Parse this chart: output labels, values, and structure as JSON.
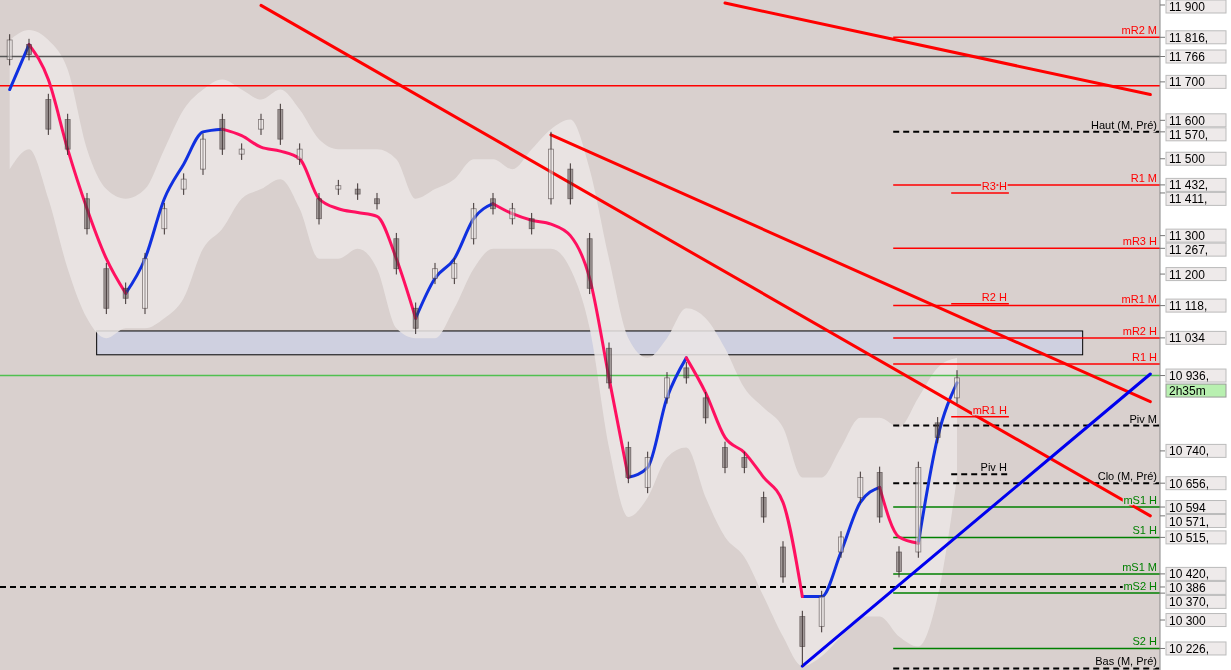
{
  "chart_data": {
    "type": "candlestick",
    "categories": [
      null,
      null,
      null,
      null,
      null,
      null,
      null,
      null,
      null,
      null,
      null,
      null,
      null,
      null,
      null,
      null,
      null,
      null,
      null,
      null,
      null,
      null,
      null,
      null,
      null,
      null,
      null,
      null,
      null,
      null,
      null,
      null,
      null,
      null,
      null,
      null,
      null,
      null,
      null,
      null,
      null,
      null,
      null,
      null,
      null,
      null,
      null,
      null,
      null,
      null,
      null,
      null,
      null,
      null,
      null,
      null,
      null,
      null,
      null,
      null
    ],
    "ohlc": [
      [
        11758,
        11824,
        11743,
        11809
      ],
      [
        11797,
        11812,
        11756,
        11771
      ],
      [
        11654,
        11669,
        11562,
        11577
      ],
      [
        11602,
        11617,
        11510,
        11525
      ],
      [
        11396,
        11411,
        11303,
        11318
      ],
      [
        11214,
        11229,
        11096,
        11111
      ],
      [
        11163,
        11178,
        11122,
        11137
      ],
      [
        11111,
        11255,
        11096,
        11240
      ],
      [
        11318,
        11385,
        11303,
        11370
      ],
      [
        11421,
        11462,
        11406,
        11447
      ],
      [
        11473,
        11566,
        11458,
        11551
      ],
      [
        11602,
        11617,
        11510,
        11525
      ],
      [
        11512,
        11540,
        11497,
        11525
      ],
      [
        11577,
        11617,
        11562,
        11602
      ],
      [
        11628,
        11643,
        11536,
        11551
      ],
      [
        11499,
        11540,
        11484,
        11525
      ],
      [
        11396,
        11411,
        11329,
        11344
      ],
      [
        11421,
        11445,
        11406,
        11430
      ],
      [
        11421,
        11436,
        11393,
        11408
      ],
      [
        11396,
        11411,
        11368,
        11383
      ],
      [
        11292,
        11307,
        11199,
        11214
      ],
      [
        11111,
        11126,
        11044,
        11059
      ],
      [
        11189,
        11229,
        11174,
        11214
      ],
      [
        11189,
        11242,
        11174,
        11227
      ],
      [
        11292,
        11385,
        11277,
        11370
      ],
      [
        11396,
        11411,
        11355,
        11370
      ],
      [
        11344,
        11385,
        11329,
        11370
      ],
      [
        11344,
        11359,
        11303,
        11318
      ],
      [
        11396,
        11570,
        11381,
        11525
      ],
      [
        11473,
        11488,
        11381,
        11396
      ],
      [
        11292,
        11307,
        11148,
        11163
      ],
      [
        11007,
        11022,
        10902,
        10917
      ],
      [
        10749,
        10764,
        10656,
        10671
      ],
      [
        10645,
        10738,
        10630,
        10723
      ],
      [
        10878,
        10945,
        10863,
        10930
      ],
      [
        10956,
        10971,
        10915,
        10930
      ],
      [
        10878,
        10893,
        10811,
        10826
      ],
      [
        10749,
        10764,
        10682,
        10697
      ],
      [
        10723,
        10738,
        10682,
        10697
      ],
      [
        10619,
        10634,
        10553,
        10568
      ],
      [
        10490,
        10505,
        10397,
        10412
      ],
      [
        10309,
        10324,
        10180,
        10231
      ],
      [
        10283,
        10376,
        10268,
        10361
      ],
      [
        10477,
        10531,
        10462,
        10516
      ],
      [
        10619,
        10686,
        10604,
        10671
      ],
      [
        10684,
        10699,
        10553,
        10568
      ],
      [
        10477,
        10492,
        10411,
        10426
      ],
      [
        10477,
        10712,
        10462,
        10697
      ],
      [
        10813,
        10828,
        10760,
        10775
      ],
      [
        10878,
        10950,
        10863,
        10930
      ],
      null,
      null,
      null,
      null,
      null,
      null,
      null,
      null,
      null,
      null
    ],
    "ylim": [
      10170,
      11913
    ],
    "yticks": [
      {
        "value": 11900,
        "label": "11 900"
      },
      {
        "value": 11816,
        "label": "11 816,"
      },
      {
        "value": 11766,
        "label": "11 766"
      },
      {
        "value": 11700,
        "label": "11 700"
      },
      {
        "value": 11600,
        "label": "11 600"
      },
      {
        "value": 11570,
        "label": "11 570,"
      },
      {
        "value": 11500,
        "label": "11 500"
      },
      {
        "value": 11432,
        "label": "11 432,"
      },
      {
        "value": 11411,
        "label": "11 411,"
      },
      {
        "value": 11300,
        "label": "11 300"
      },
      {
        "value": 11267,
        "label": "11 267,"
      },
      {
        "value": 11200,
        "label": "11 200"
      },
      {
        "value": 11118,
        "label": "11 118,"
      },
      {
        "value": 11034,
        "label": "11 034"
      },
      {
        "value": 10936,
        "label": "10 936,"
      },
      {
        "value": 10740,
        "label": "10 740,"
      },
      {
        "value": 10656,
        "label": "10 656,"
      },
      {
        "value": 10594,
        "label": "10 594"
      },
      {
        "value": 10571,
        "label": "10 571,"
      },
      {
        "value": 10515,
        "label": "10 515,"
      },
      {
        "value": 10420,
        "label": "10 420,"
      },
      {
        "value": 10386,
        "label": "10 386"
      },
      {
        "value": 10370,
        "label": "10 370,"
      },
      {
        "value": 10300,
        "label": "10 300"
      },
      {
        "value": 10226,
        "label": "10 226,"
      }
    ],
    "tick_labels": "y",
    "series": [
      {
        "type": "line",
        "color": "#1030e0",
        "values": [
          11680,
          11797,
          null,
          null,
          null,
          null,
          11150,
          11240,
          11396,
          11486,
          11570,
          11577,
          null,
          null,
          null,
          null,
          null,
          null,
          null,
          null,
          null,
          11085,
          11189,
          11240,
          11344,
          11383,
          null,
          null,
          null,
          null,
          null,
          null,
          10671,
          10697,
          10878,
          10982,
          null,
          null,
          null,
          null,
          null,
          10361,
          10361,
          10477,
          10606,
          10645,
          null,
          10500,
          10775,
          10917,
          null,
          null,
          null,
          null,
          null,
          null,
          null,
          null,
          null,
          null
        ],
        "lower": [
          11473,
          11525,
          11396,
          11214,
          11085,
          11033,
          11059,
          11059,
          11085,
          11137,
          11266,
          11318,
          11396,
          11421,
          11447,
          11370,
          11240,
          11240,
          11266,
          11214,
          11059,
          11033,
          11033,
          11111,
          11214,
          11266,
          11266,
          11266,
          11266,
          11214,
          11059,
          10749,
          10568,
          10619,
          10723,
          10749,
          10619,
          10516,
          10464,
          10361,
          10257,
          10180,
          10206,
          10257,
          10309,
          10309,
          10257,
          10231,
          10361,
          10671,
          null,
          null,
          null,
          null,
          null,
          null,
          null,
          null,
          null,
          null
        ],
        "upper": [
          11809,
          11835,
          11809,
          11732,
          11525,
          11421,
          11396,
          11421,
          11525,
          11628,
          11680,
          11706,
          11680,
          11654,
          11680,
          11628,
          11551,
          11525,
          11525,
          11525,
          11499,
          11396,
          11421,
          11447,
          11499,
          11499,
          11473,
          11525,
          11577,
          11602,
          11473,
          11240,
          11033,
          10982,
          11033,
          11111,
          11085,
          11007,
          10904,
          10852,
          10801,
          10671,
          10671,
          10749,
          10826,
          10826,
          10801,
          10878,
          10956,
          10982,
          null,
          null,
          null,
          null,
          null,
          null,
          null,
          null,
          null,
          null
        ]
      },
      {
        "type": "line",
        "color": "#ff1060",
        "values": [
          null,
          11797,
          11706,
          11525,
          11370,
          11240,
          11150,
          null,
          null,
          null,
          null,
          11577,
          11560,
          11530,
          11520,
          11500,
          11396,
          11370,
          11360,
          11350,
          11240,
          11085,
          null,
          null,
          null,
          11383,
          11357,
          11340,
          11330,
          11300,
          11189,
          10930,
          10671,
          null,
          null,
          10982,
          10891,
          10775,
          10736,
          10671,
          10606,
          10361,
          null,
          null,
          null,
          10645,
          10516,
          10500,
          null,
          null,
          null,
          null,
          null,
          null,
          null,
          null,
          null,
          null,
          null,
          null
        ]
      },
      {
        "type": "line",
        "color": "#ff0000",
        "values": [
          null,
          null,
          null,
          null,
          null,
          null,
          null,
          null,
          null,
          null,
          null,
          null,
          null,
          11899,
          null,
          null,
          null,
          null,
          null,
          null,
          null,
          null,
          null,
          null,
          null,
          null,
          null,
          null,
          null,
          null,
          null,
          null,
          null,
          null,
          null,
          null,
          null,
          null,
          null,
          null,
          null,
          null,
          null,
          null,
          null,
          null,
          null,
          null,
          null,
          null,
          null,
          null,
          null,
          null,
          null,
          null,
          null,
          null,
          null,
          10571
        ]
      },
      {
        "type": "line",
        "color": "#ff0000",
        "values": [
          null,
          null,
          null,
          null,
          null,
          null,
          null,
          null,
          null,
          null,
          null,
          null,
          null,
          null,
          null,
          null,
          null,
          null,
          null,
          null,
          null,
          null,
          null,
          null,
          null,
          null,
          null,
          null,
          11562,
          null,
          null,
          null,
          null,
          null,
          null,
          null,
          null,
          null,
          null,
          null,
          null,
          null,
          null,
          null,
          null,
          null,
          null,
          null,
          null,
          null,
          null,
          null,
          null,
          null,
          null,
          null,
          null,
          null,
          null,
          10868
        ]
      },
      {
        "type": "line",
        "color": "#ff0000",
        "values": [
          null,
          null,
          null,
          null,
          null,
          null,
          null,
          null,
          null,
          null,
          null,
          null,
          null,
          null,
          null,
          null,
          null,
          null,
          null,
          null,
          null,
          null,
          null,
          null,
          null,
          null,
          null,
          null,
          null,
          null,
          null,
          null,
          null,
          null,
          null,
          null,
          null,
          11905,
          null,
          null,
          null,
          null,
          null,
          null,
          null,
          null,
          null,
          null,
          null,
          null,
          null,
          null,
          null,
          null,
          null,
          null,
          null,
          null,
          null,
          11667
        ]
      },
      {
        "type": "line",
        "color": "#0000ee",
        "values": [
          null,
          null,
          null,
          null,
          null,
          null,
          null,
          null,
          null,
          null,
          null,
          null,
          null,
          null,
          null,
          null,
          null,
          null,
          null,
          null,
          null,
          null,
          null,
          null,
          null,
          null,
          null,
          null,
          null,
          null,
          null,
          null,
          null,
          null,
          null,
          null,
          null,
          null,
          null,
          null,
          null,
          10180,
          null,
          null,
          null,
          null,
          null,
          null,
          null,
          null,
          null,
          null,
          null,
          null,
          null,
          null,
          null,
          null,
          null,
          10940
        ]
      }
    ],
    "ref_lines": [
      {
        "axis": "y",
        "value": 11816,
        "label": "mR2 M",
        "color": "#ff0000"
      },
      {
        "axis": "y",
        "value": 11766,
        "label": null,
        "color": "#555555"
      },
      {
        "axis": "y",
        "value": 11690,
        "label": null,
        "color": "#ff0000"
      },
      {
        "axis": "y",
        "value": 11570,
        "label": "Haut (M, Pré)",
        "color": "#000000",
        "line_style": "dashed"
      },
      {
        "axis": "y",
        "value": 11432,
        "label": "R1 M",
        "color": "#ff0000"
      },
      {
        "axis": "y",
        "value": 11411,
        "label": "R3 H",
        "color": "#ff0000"
      },
      {
        "axis": "y",
        "value": 11267,
        "label": "mR3 H",
        "color": "#ff0000"
      },
      {
        "axis": "y",
        "value": 11118,
        "label": "mR1 M",
        "color": "#ff0000"
      },
      {
        "axis": "y",
        "value": 11123,
        "label": "R2 H",
        "color": "#ff0000"
      },
      {
        "axis": "y",
        "value": 11034,
        "label": "mR2 H",
        "color": "#ff0000"
      },
      {
        "axis": "y",
        "value": 10966,
        "label": "R1 H",
        "color": "#ff0000"
      },
      {
        "axis": "y",
        "value": 10936,
        "label": null,
        "color": "#50c050"
      },
      {
        "axis": "y",
        "value": 10806,
        "label": "Piv M",
        "color": "#000000",
        "line_style": "dashed"
      },
      {
        "axis": "y",
        "value": 10829,
        "label": "mR1 H",
        "color": "#ff0000"
      },
      {
        "axis": "y",
        "value": 10656,
        "label": "Clo (M, Pré)",
        "color": "#000000",
        "line_style": "dashed"
      },
      {
        "axis": "y",
        "value": 10679,
        "label": "Piv H",
        "color": "#000000",
        "line_style": "dashed"
      },
      {
        "axis": "y",
        "value": 10594,
        "label": "mS1 H",
        "color": "#008000"
      },
      {
        "axis": "y",
        "value": 10515,
        "label": "S1 H",
        "color": "#008000"
      },
      {
        "axis": "y",
        "value": 10420,
        "label": "mS1 M",
        "color": "#008000"
      },
      {
        "axis": "y",
        "value": 10386,
        "label": null,
        "color": "#000000",
        "line_style": "dashed"
      },
      {
        "axis": "y",
        "value": 10370,
        "label": "mS2 H",
        "color": "#008000"
      },
      {
        "axis": "y",
        "value": 10226,
        "label": "S2 H",
        "color": "#008000"
      },
      {
        "axis": "y",
        "value": 10174,
        "label": "Bas (M, Pré)",
        "color": "#000000",
        "line_style": "dashed"
      }
    ],
    "bands": [
      {
        "axis": "y",
        "from": 10990,
        "to": 11052,
        "label": null,
        "color": "#cfd0e0"
      }
    ],
    "annotations": [
      "2h35m"
    ]
  }
}
